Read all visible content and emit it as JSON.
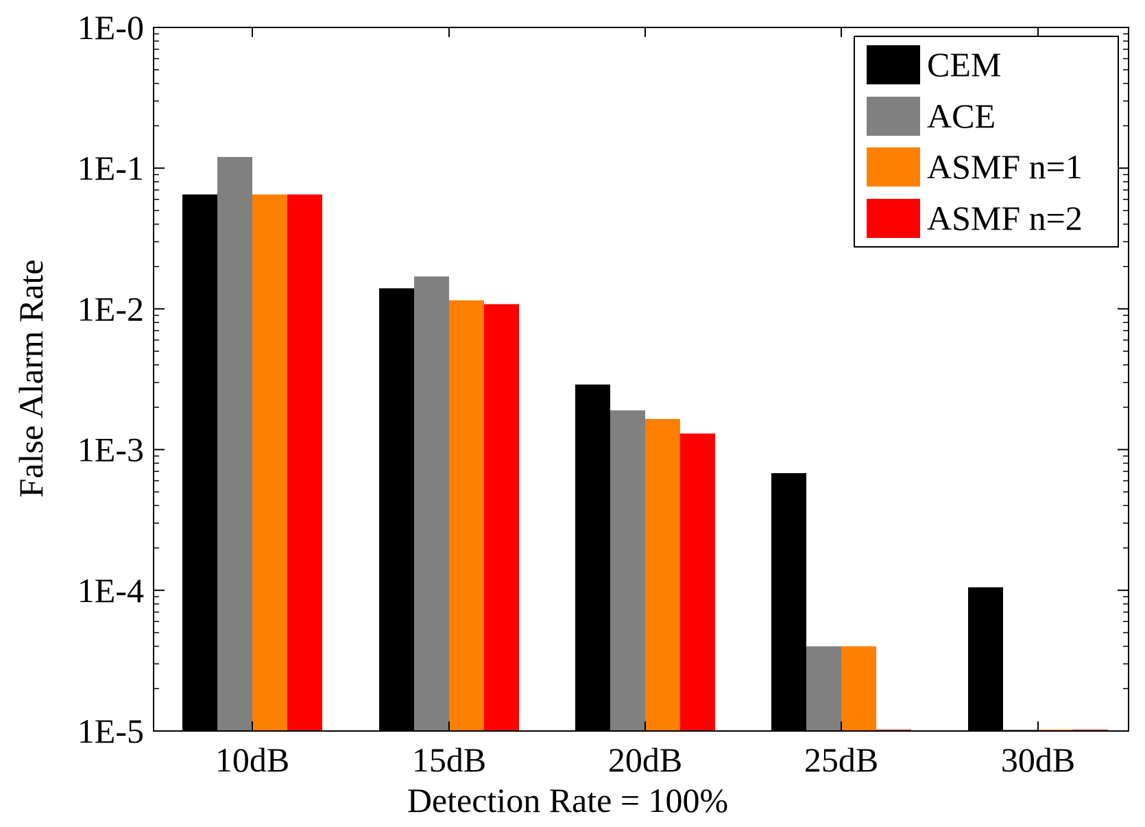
{
  "chart_data": {
    "type": "bar",
    "scale": "log",
    "title": "",
    "xlabel": "Detection Rate = 100%",
    "ylabel": "False Alarm Rate",
    "categories": [
      "10dB",
      "15dB",
      "20dB",
      "25dB",
      "30dB"
    ],
    "ylim": [
      1e-05,
      1
    ],
    "yticks": [
      {
        "value": 1,
        "label": "1E-0"
      },
      {
        "value": 0.1,
        "label": "1E-1"
      },
      {
        "value": 0.01,
        "label": "1E-2"
      },
      {
        "value": 0.001,
        "label": "1E-3"
      },
      {
        "value": 0.0001,
        "label": "1E-4"
      },
      {
        "value": 1e-05,
        "label": "1E-5"
      }
    ],
    "grid": false,
    "legend_position": "top-right",
    "series": [
      {
        "name": "CEM",
        "color": "#000000",
        "values": [
          0.065,
          0.014,
          0.0029,
          0.00068,
          0.000105
        ]
      },
      {
        "name": "ACE",
        "color": "#808080",
        "values": [
          0.12,
          0.017,
          0.0019,
          4e-05,
          1e-05
        ]
      },
      {
        "name": "ASMF n=1",
        "color": "#ff8000",
        "values": [
          0.065,
          0.0115,
          0.00165,
          4e-05,
          1e-05
        ]
      },
      {
        "name": "ASMF n=2",
        "color": "#ff0000",
        "values": [
          0.065,
          0.0108,
          0.0013,
          1e-05,
          1e-05
        ]
      }
    ]
  }
}
